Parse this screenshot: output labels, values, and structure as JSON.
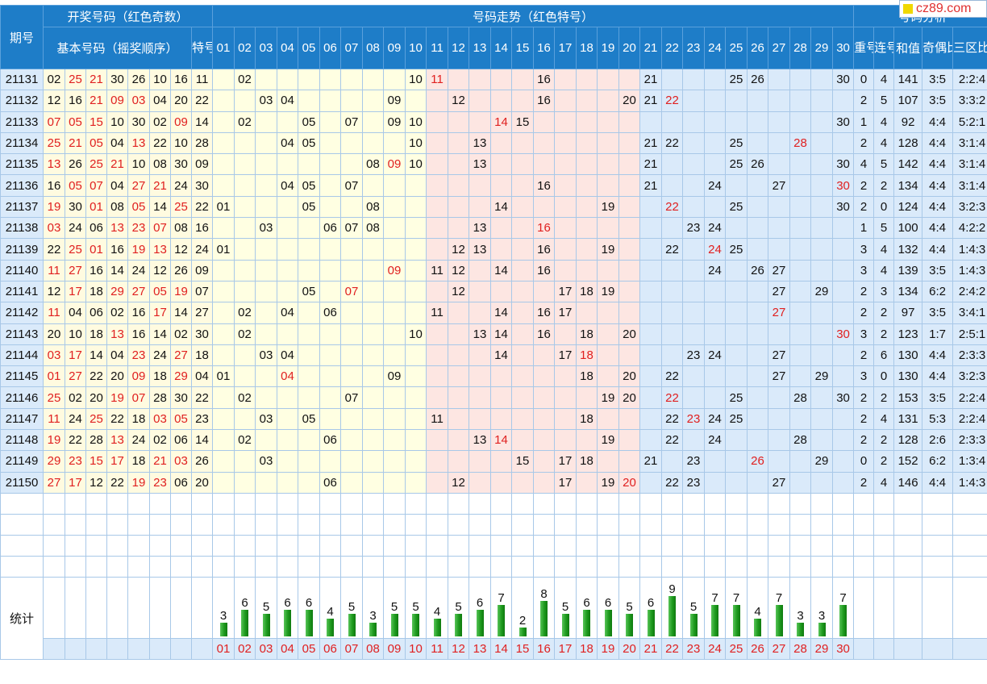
{
  "watermark": "cz89.com",
  "header": {
    "period_label": "期号",
    "draw_group": "开奖号码（红色奇数）",
    "basic_label": "基本号码（摇奖顺序）",
    "special_label": "特号",
    "trend_group": "号码走势（红色特号）",
    "analysis_group": "号码分析",
    "repeat_label": "重号",
    "consecutive_label": "连号",
    "sum_label": "和值",
    "odd_even_label": "奇偶比例",
    "zone_label": "三区比例"
  },
  "columns": [
    "01",
    "02",
    "03",
    "04",
    "05",
    "06",
    "07",
    "08",
    "09",
    "10",
    "11",
    "12",
    "13",
    "14",
    "15",
    "16",
    "17",
    "18",
    "19",
    "20",
    "21",
    "22",
    "23",
    "24",
    "25",
    "26",
    "27",
    "28",
    "29",
    "30"
  ],
  "rows": [
    {
      "period": "21131",
      "basic": [
        "02",
        "25",
        "21",
        "30",
        "26",
        "10",
        "16"
      ],
      "special": "11",
      "repeat": "0",
      "consecutive": "4",
      "sum": "141",
      "odd_even": "3:5",
      "zone": "2:2:4"
    },
    {
      "period": "21132",
      "basic": [
        "12",
        "16",
        "21",
        "09",
        "03",
        "04",
        "20"
      ],
      "special": "22",
      "repeat": "2",
      "consecutive": "5",
      "sum": "107",
      "odd_even": "3:5",
      "zone": "3:3:2"
    },
    {
      "period": "21133",
      "basic": [
        "07",
        "05",
        "15",
        "10",
        "30",
        "02",
        "09"
      ],
      "special": "14",
      "repeat": "1",
      "consecutive": "4",
      "sum": "92",
      "odd_even": "4:4",
      "zone": "5:2:1"
    },
    {
      "period": "21134",
      "basic": [
        "25",
        "21",
        "05",
        "04",
        "13",
        "22",
        "10"
      ],
      "special": "28",
      "repeat": "2",
      "consecutive": "4",
      "sum": "128",
      "odd_even": "4:4",
      "zone": "3:1:4"
    },
    {
      "period": "21135",
      "basic": [
        "13",
        "26",
        "25",
        "21",
        "10",
        "08",
        "30"
      ],
      "special": "09",
      "repeat": "4",
      "consecutive": "5",
      "sum": "142",
      "odd_even": "4:4",
      "zone": "3:1:4"
    },
    {
      "period": "21136",
      "basic": [
        "16",
        "05",
        "07",
        "04",
        "27",
        "21",
        "24"
      ],
      "special": "30",
      "repeat": "2",
      "consecutive": "2",
      "sum": "134",
      "odd_even": "4:4",
      "zone": "3:1:4"
    },
    {
      "period": "21137",
      "basic": [
        "19",
        "30",
        "01",
        "08",
        "05",
        "14",
        "25"
      ],
      "special": "22",
      "repeat": "2",
      "consecutive": "0",
      "sum": "124",
      "odd_even": "4:4",
      "zone": "3:2:3"
    },
    {
      "period": "21138",
      "basic": [
        "03",
        "24",
        "06",
        "13",
        "23",
        "07",
        "08"
      ],
      "special": "16",
      "repeat": "1",
      "consecutive": "5",
      "sum": "100",
      "odd_even": "4:4",
      "zone": "4:2:2"
    },
    {
      "period": "21139",
      "basic": [
        "22",
        "25",
        "01",
        "16",
        "19",
        "13",
        "12"
      ],
      "special": "24",
      "repeat": "3",
      "consecutive": "4",
      "sum": "132",
      "odd_even": "4:4",
      "zone": "1:4:3"
    },
    {
      "period": "21140",
      "basic": [
        "11",
        "27",
        "16",
        "14",
        "24",
        "12",
        "26"
      ],
      "special": "09",
      "repeat": "3",
      "consecutive": "4",
      "sum": "139",
      "odd_even": "3:5",
      "zone": "1:4:3"
    },
    {
      "period": "21141",
      "basic": [
        "12",
        "17",
        "18",
        "29",
        "27",
        "05",
        "19"
      ],
      "special": "07",
      "repeat": "2",
      "consecutive": "3",
      "sum": "134",
      "odd_even": "6:2",
      "zone": "2:4:2"
    },
    {
      "period": "21142",
      "basic": [
        "11",
        "04",
        "06",
        "02",
        "16",
        "17",
        "14"
      ],
      "special": "27",
      "repeat": "2",
      "consecutive": "2",
      "sum": "97",
      "odd_even": "3:5",
      "zone": "3:4:1"
    },
    {
      "period": "21143",
      "basic": [
        "20",
        "10",
        "18",
        "13",
        "16",
        "14",
        "02"
      ],
      "special": "30",
      "repeat": "3",
      "consecutive": "2",
      "sum": "123",
      "odd_even": "1:7",
      "zone": "2:5:1"
    },
    {
      "period": "21144",
      "basic": [
        "03",
        "17",
        "14",
        "04",
        "23",
        "24",
        "27"
      ],
      "special": "18",
      "repeat": "2",
      "consecutive": "6",
      "sum": "130",
      "odd_even": "4:4",
      "zone": "2:3:3"
    },
    {
      "period": "21145",
      "basic": [
        "01",
        "27",
        "22",
        "20",
        "09",
        "18",
        "29"
      ],
      "special": "04",
      "repeat": "3",
      "consecutive": "0",
      "sum": "130",
      "odd_even": "4:4",
      "zone": "3:2:3"
    },
    {
      "period": "21146",
      "basic": [
        "25",
        "02",
        "20",
        "19",
        "07",
        "28",
        "30"
      ],
      "special": "22",
      "repeat": "2",
      "consecutive": "2",
      "sum": "153",
      "odd_even": "3:5",
      "zone": "2:2:4"
    },
    {
      "period": "21147",
      "basic": [
        "11",
        "24",
        "25",
        "22",
        "18",
        "03",
        "05"
      ],
      "special": "23",
      "repeat": "2",
      "consecutive": "4",
      "sum": "131",
      "odd_even": "5:3",
      "zone": "2:2:4"
    },
    {
      "period": "21148",
      "basic": [
        "19",
        "22",
        "28",
        "13",
        "24",
        "02",
        "06"
      ],
      "special": "14",
      "repeat": "2",
      "consecutive": "2",
      "sum": "128",
      "odd_even": "2:6",
      "zone": "2:3:3"
    },
    {
      "period": "21149",
      "basic": [
        "29",
        "23",
        "15",
        "17",
        "18",
        "21",
        "03"
      ],
      "special": "26",
      "repeat": "0",
      "consecutive": "2",
      "sum": "152",
      "odd_even": "6:2",
      "zone": "1:3:4"
    },
    {
      "period": "21150",
      "basic": [
        "27",
        "17",
        "12",
        "22",
        "19",
        "23",
        "06"
      ],
      "special": "20",
      "repeat": "2",
      "consecutive": "4",
      "sum": "146",
      "odd_even": "4:4",
      "zone": "1:4:3"
    }
  ],
  "stats": {
    "label": "统计",
    "counts": [
      3,
      6,
      5,
      6,
      6,
      4,
      5,
      3,
      5,
      5,
      4,
      5,
      6,
      7,
      2,
      8,
      5,
      6,
      6,
      5,
      6,
      9,
      5,
      7,
      7,
      4,
      7,
      3,
      3,
      7
    ]
  }
}
